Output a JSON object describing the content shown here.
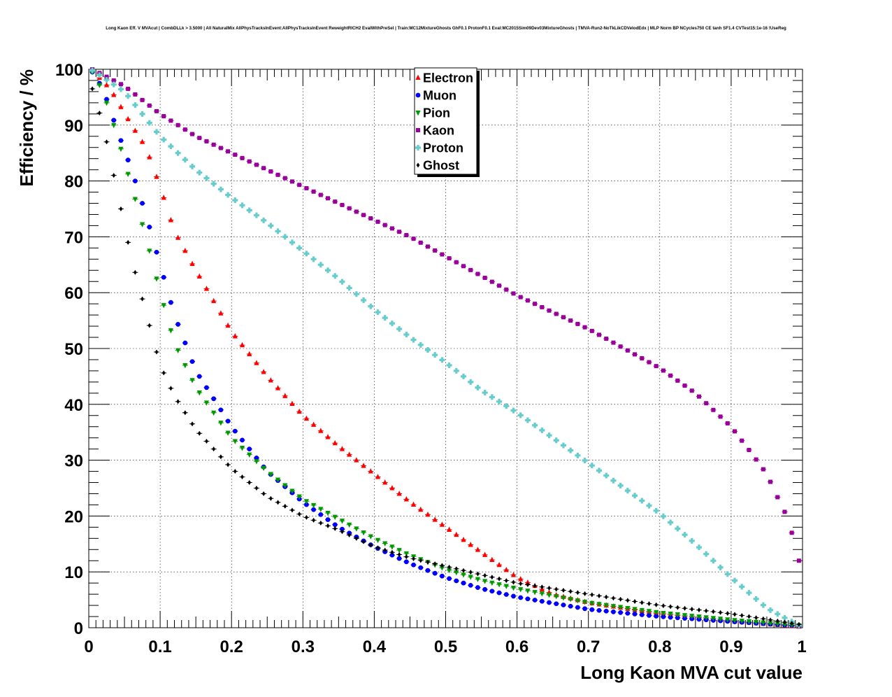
{
  "chart_data": {
    "type": "scatter",
    "title": "Long Kaon Eff. V MVAcut | CombDLLk > 3.5000 | All NaturalMix AllPhysTracksInEvent:AllPhysTracksInEvent ReweightRICH2 EvalWithPreSel | Train:MC12MixtureGhosts GhF0.1 ProtonF0.1 Eval:MC2015Sim09Dev03MixtureGhosts | TMVA-Run2-NoTkLikCDVelodEdx | MLP Norm BP NCycles750 CE tanh SF1.4 CVTest15:1e-16 !UseReg",
    "xlabel": "Long Kaon MVA cut value",
    "ylabel": "Efficiency / %",
    "xlim": [
      0,
      1
    ],
    "ylim": [
      0,
      100
    ],
    "xticks": [
      "0",
      "0.1",
      "0.2",
      "0.3",
      "0.4",
      "0.5",
      "0.6",
      "0.7",
      "0.8",
      "0.9",
      "1"
    ],
    "yticks": [
      "0",
      "10",
      "20",
      "30",
      "40",
      "50",
      "60",
      "70",
      "80",
      "90",
      "100"
    ],
    "grid": true,
    "legend_position": "top-center",
    "x_step": 0.01,
    "x_start": 0.005,
    "series": [
      {
        "name": "Electron",
        "color": "#ff0000",
        "marker": "triangle-up",
        "anchors": [
          [
            0.005,
            99.8
          ],
          [
            0.03,
            96.5
          ],
          [
            0.06,
            90
          ],
          [
            0.08,
            86
          ],
          [
            0.1,
            79
          ],
          [
            0.12,
            71
          ],
          [
            0.15,
            64
          ],
          [
            0.2,
            53
          ],
          [
            0.25,
            45
          ],
          [
            0.3,
            38
          ],
          [
            0.35,
            32.5
          ],
          [
            0.4,
            27.5
          ],
          [
            0.45,
            22.5
          ],
          [
            0.5,
            18
          ],
          [
            0.55,
            13.5
          ],
          [
            0.6,
            9
          ],
          [
            0.65,
            6
          ],
          [
            0.7,
            4.5
          ],
          [
            0.8,
            2.5
          ],
          [
            0.9,
            1.2
          ],
          [
            0.995,
            0.2
          ]
        ]
      },
      {
        "name": "Muon",
        "color": "#0000ff",
        "marker": "circle",
        "anchors": [
          [
            0.005,
            99.5
          ],
          [
            0.02,
            96.5
          ],
          [
            0.04,
            89
          ],
          [
            0.06,
            82
          ],
          [
            0.08,
            74
          ],
          [
            0.1,
            65
          ],
          [
            0.12,
            56
          ],
          [
            0.15,
            46
          ],
          [
            0.2,
            36
          ],
          [
            0.25,
            28
          ],
          [
            0.3,
            22.5
          ],
          [
            0.35,
            18
          ],
          [
            0.4,
            14.5
          ],
          [
            0.45,
            11.5
          ],
          [
            0.5,
            9
          ],
          [
            0.55,
            7
          ],
          [
            0.6,
            5.5
          ],
          [
            0.7,
            3.3
          ],
          [
            0.8,
            2
          ],
          [
            0.9,
            1.1
          ],
          [
            0.995,
            0.3
          ]
        ]
      },
      {
        "name": "Pion",
        "color": "#009900",
        "marker": "triangle-down",
        "anchors": [
          [
            0.005,
            99.5
          ],
          [
            0.02,
            96
          ],
          [
            0.04,
            88
          ],
          [
            0.06,
            79
          ],
          [
            0.08,
            70
          ],
          [
            0.1,
            60
          ],
          [
            0.12,
            51
          ],
          [
            0.15,
            43
          ],
          [
            0.2,
            34
          ],
          [
            0.25,
            28
          ],
          [
            0.3,
            23
          ],
          [
            0.35,
            19.5
          ],
          [
            0.4,
            16
          ],
          [
            0.45,
            13
          ],
          [
            0.5,
            10.5
          ],
          [
            0.55,
            8.5
          ],
          [
            0.6,
            7
          ],
          [
            0.7,
            4.5
          ],
          [
            0.8,
            2.7
          ],
          [
            0.9,
            1.4
          ],
          [
            0.995,
            0.4
          ]
        ]
      },
      {
        "name": "Kaon",
        "color": "#990099",
        "marker": "square",
        "anchors": [
          [
            0.005,
            100
          ],
          [
            0.05,
            97
          ],
          [
            0.1,
            92
          ],
          [
            0.15,
            88
          ],
          [
            0.2,
            85
          ],
          [
            0.25,
            82
          ],
          [
            0.3,
            79
          ],
          [
            0.35,
            76
          ],
          [
            0.4,
            73
          ],
          [
            0.45,
            70
          ],
          [
            0.5,
            66.5
          ],
          [
            0.55,
            63
          ],
          [
            0.6,
            59.5
          ],
          [
            0.65,
            56.5
          ],
          [
            0.7,
            53.5
          ],
          [
            0.75,
            50
          ],
          [
            0.8,
            46.5
          ],
          [
            0.85,
            42
          ],
          [
            0.9,
            36
          ],
          [
            0.93,
            31
          ],
          [
            0.95,
            27.5
          ],
          [
            0.97,
            22
          ],
          [
            0.98,
            19.5
          ],
          [
            0.995,
            12
          ]
        ]
      },
      {
        "name": "Proton",
        "color": "#66cccc",
        "marker": "cross",
        "anchors": [
          [
            0.005,
            99.8
          ],
          [
            0.05,
            96
          ],
          [
            0.1,
            88
          ],
          [
            0.15,
            82
          ],
          [
            0.2,
            77
          ],
          [
            0.25,
            72.5
          ],
          [
            0.3,
            67.5
          ],
          [
            0.35,
            62.5
          ],
          [
            0.4,
            57
          ],
          [
            0.45,
            52
          ],
          [
            0.5,
            47.5
          ],
          [
            0.55,
            42.5
          ],
          [
            0.6,
            38.5
          ],
          [
            0.65,
            34
          ],
          [
            0.7,
            29.5
          ],
          [
            0.75,
            25
          ],
          [
            0.8,
            20.5
          ],
          [
            0.85,
            15
          ],
          [
            0.9,
            9
          ],
          [
            0.95,
            3.5
          ],
          [
            0.995,
            0.4
          ]
        ]
      },
      {
        "name": "Ghost",
        "color": "#000000",
        "marker": "diamond",
        "anchors": [
          [
            0.005,
            96.5
          ],
          [
            0.02,
            90
          ],
          [
            0.04,
            78
          ],
          [
            0.06,
            66
          ],
          [
            0.08,
            56.5
          ],
          [
            0.1,
            47
          ],
          [
            0.12,
            41.5
          ],
          [
            0.15,
            35.5
          ],
          [
            0.2,
            28.5
          ],
          [
            0.25,
            23.5
          ],
          [
            0.3,
            20
          ],
          [
            0.35,
            17.5
          ],
          [
            0.4,
            14.5
          ],
          [
            0.45,
            12.5
          ],
          [
            0.5,
            11
          ],
          [
            0.55,
            9.5
          ],
          [
            0.6,
            8
          ],
          [
            0.7,
            6
          ],
          [
            0.8,
            4
          ],
          [
            0.9,
            2.5
          ],
          [
            0.995,
            0.6
          ]
        ]
      }
    ]
  }
}
